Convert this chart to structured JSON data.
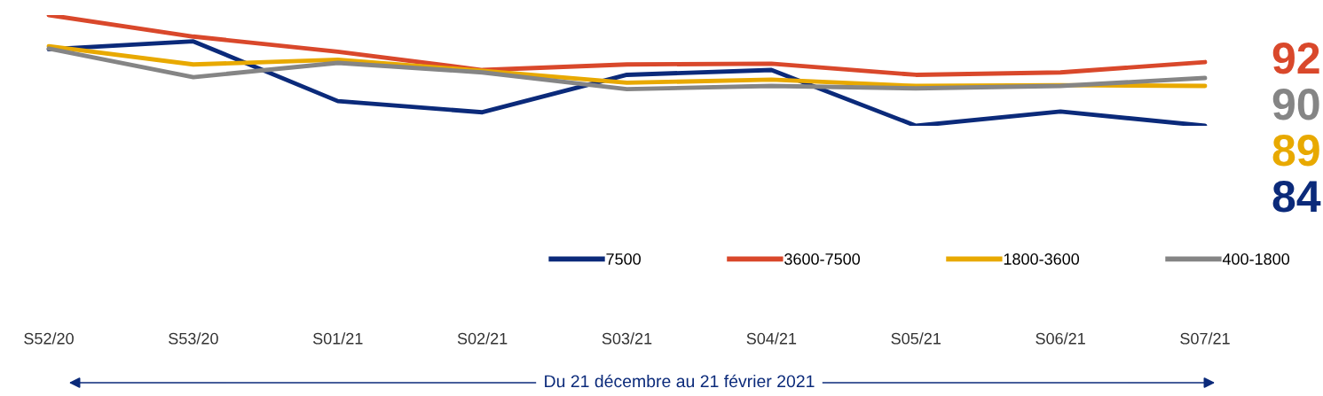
{
  "chart_data": {
    "type": "line",
    "categories": [
      "S52/20",
      "S53/20",
      "S01/21",
      "S02/21",
      "S03/21",
      "S04/21",
      "S05/21",
      "S06/21",
      "S07/21"
    ],
    "series": [
      {
        "name": "7500",
        "color": "#0b2a7a",
        "values": [
          93.6,
          94.6,
          87.1,
          85.7,
          90.4,
          91.0,
          84.0,
          85.8,
          84
        ],
        "value_labels": [
          null,
          null,
          null,
          null,
          null,
          null,
          null,
          null,
          "84"
        ]
      },
      {
        "name": "3600-7500",
        "color": "#d9482b",
        "values": [
          97.9,
          95.2,
          93.3,
          91.0,
          91.7,
          91.8,
          90.4,
          90.7,
          92
        ],
        "value_labels": [
          null,
          null,
          null,
          null,
          null,
          null,
          null,
          null,
          "92"
        ]
      },
      {
        "name": "1800-3600",
        "color": "#e8a900",
        "values": [
          94.0,
          91.7,
          92.3,
          90.9,
          89.4,
          89.8,
          89.0,
          89.1,
          89
        ],
        "value_labels": [
          null,
          null,
          null,
          null,
          null,
          null,
          null,
          null,
          "89"
        ]
      },
      {
        "name": "400-1800",
        "color": "#858585",
        "values": [
          93.7,
          90.1,
          91.9,
          90.7,
          88.6,
          89.0,
          88.7,
          89.0,
          90
        ],
        "value_labels": [
          null,
          null,
          null,
          null,
          null,
          null,
          null,
          null,
          "90"
        ]
      }
    ],
    "tick_labels": "x",
    "grid": false,
    "legend": "bottom",
    "marker": "none",
    "line_style": "solid",
    "annotations": [
      "Du 21 décembre au 21 février 2021"
    ]
  }
}
